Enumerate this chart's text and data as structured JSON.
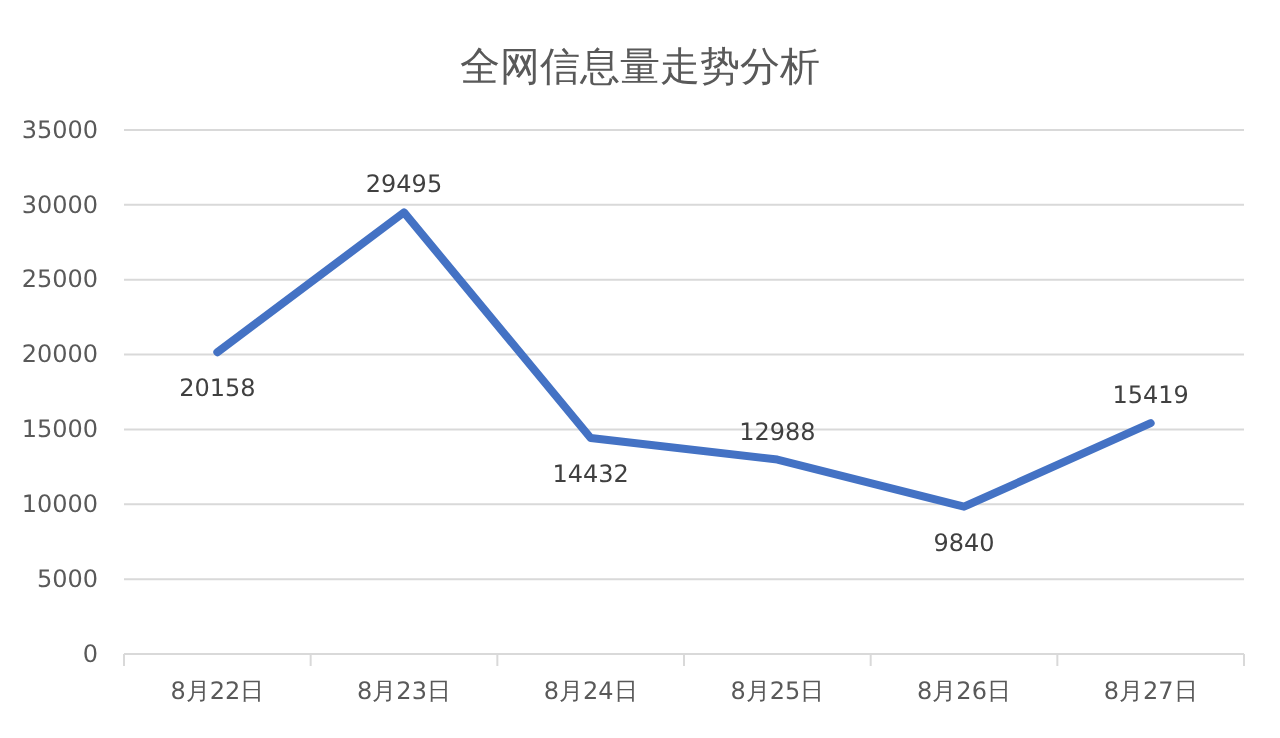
{
  "chart_data": {
    "type": "line",
    "title": "全网信息量走势分析",
    "categories": [
      "8月22日",
      "8月23日",
      "8月24日",
      "8月25日",
      "8月26日",
      "8月27日"
    ],
    "series": [
      {
        "color": "#4472c4",
        "values": [
          20158,
          29495,
          14432,
          12988,
          9840,
          15419
        ]
      }
    ],
    "ylim": [
      0,
      35000
    ],
    "yticks": [
      0,
      5000,
      10000,
      15000,
      20000,
      25000,
      30000,
      35000
    ],
    "grid": "y",
    "data_labels": true,
    "legend": false,
    "marker": "none",
    "line_style": "solid"
  }
}
